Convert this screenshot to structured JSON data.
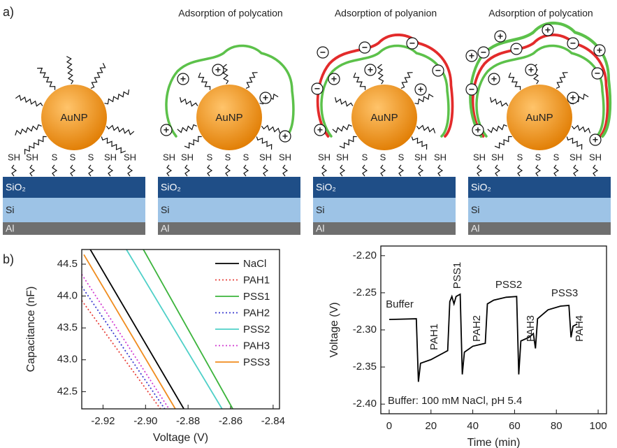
{
  "figure": {
    "panel_labels": [
      "a)",
      "b)"
    ],
    "schematic_titles": [
      "Adsorption of polycation",
      "Adsorption of polyanion",
      "Adsorption of polycation"
    ],
    "particle_label": "AuNP",
    "surface_labels": [
      "SH",
      "SH",
      "S",
      "S",
      "S",
      "SH",
      "SH"
    ],
    "layers": [
      "SiO₂",
      "Si",
      "Al"
    ],
    "charges": {
      "positive": "+",
      "negative": "−"
    }
  },
  "chart_data": [
    {
      "type": "line",
      "x_label": "Voltage (V)",
      "y_label": "Capacitance (nF)",
      "xlim": [
        -2.93,
        -2.837
      ],
      "xticks": [
        -2.92,
        {
          "value": -2.9,
          "label": "-2.90"
        },
        -2.88,
        -2.86,
        -2.84
      ],
      "ylim": [
        42.23,
        44.73
      ],
      "yticks": [
        42.5,
        {
          "value": 43.0,
          "label": "43.0"
        },
        43.5,
        {
          "value": 44.0,
          "label": "44.0"
        },
        44.5
      ],
      "legend": "upper right",
      "series": [
        {
          "name": "NaCl",
          "color": "#000000",
          "style": "solid",
          "x": [
            -2.926,
            -2.882
          ],
          "values": [
            44.73,
            42.23
          ]
        },
        {
          "name": "PAH1",
          "color": "#e8413b",
          "style": "dotted",
          "x": [
            -2.93,
            -2.893
          ],
          "values": [
            43.93,
            42.23
          ]
        },
        {
          "name": "PSS1",
          "color": "#3cb43c",
          "style": "solid",
          "x": [
            -2.901,
            -2.859
          ],
          "values": [
            44.73,
            42.23
          ]
        },
        {
          "name": "PAH2",
          "color": "#3b3bd0",
          "style": "dotted",
          "x": [
            -2.93,
            -2.891
          ],
          "values": [
            44.15,
            42.23
          ]
        },
        {
          "name": "PSS2",
          "color": "#4fd0c8",
          "style": "solid",
          "x": [
            -2.909,
            -2.864
          ],
          "values": [
            44.73,
            42.23
          ]
        },
        {
          "name": "PAH3",
          "color": "#d23cd2",
          "style": "dotted",
          "x": [
            -2.93,
            -2.889
          ],
          "values": [
            44.34,
            42.23
          ]
        },
        {
          "name": "PSS3",
          "color": "#f08c1e",
          "style": "solid",
          "x": [
            -2.929,
            -2.886
          ],
          "values": [
            44.65,
            42.23
          ]
        }
      ]
    },
    {
      "type": "line",
      "x_label": "Time (min)",
      "y_label": "Voltage (V)",
      "xlim": [
        -4,
        104
      ],
      "xticks": [
        0,
        20,
        40,
        60,
        80,
        100
      ],
      "ylim": [
        -2.413,
        -2.187
      ],
      "yticks": [
        {
          "value": -2.2,
          "label": "-2.20"
        },
        -2.25,
        {
          "value": -2.3,
          "label": "-2.30"
        },
        -2.35,
        {
          "value": -2.4,
          "label": "-2.40"
        }
      ],
      "color": "#000000",
      "x": [
        0,
        13,
        14,
        15,
        20,
        28,
        29,
        30,
        31,
        32,
        34,
        35,
        36,
        40,
        46,
        47,
        50,
        56,
        61,
        62,
        63,
        67,
        69,
        70,
        71,
        76,
        82,
        86,
        87,
        88,
        90
      ],
      "values": [
        -2.286,
        -2.285,
        -2.37,
        -2.345,
        -2.34,
        -2.328,
        -2.262,
        -2.255,
        -2.265,
        -2.255,
        -2.252,
        -2.36,
        -2.33,
        -2.322,
        -2.318,
        -2.265,
        -2.26,
        -2.256,
        -2.255,
        -2.36,
        -2.315,
        -2.31,
        -2.305,
        -2.325,
        -2.285,
        -2.273,
        -2.268,
        -2.267,
        -2.31,
        -2.295,
        -2.292
      ],
      "annotations": [
        "Buffer",
        "PAH1",
        "PSS1",
        "PAH2",
        "PSS2",
        "PAH3",
        "PSS3",
        "PAH4"
      ],
      "note": "Buffer: 100 mM NaCl, pH 5.4"
    }
  ]
}
